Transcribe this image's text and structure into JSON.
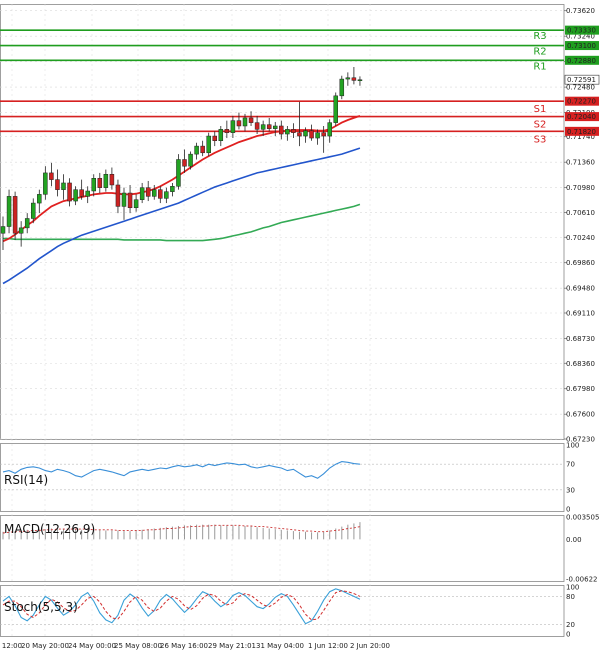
{
  "chart_data": {
    "type": "candlestick",
    "colors": {
      "up_candle": "#22a322",
      "down_candle": "#cc2222",
      "resistance": "#1f9e1f",
      "support": "#d62020",
      "ma_red": "#e02020",
      "ma_blue": "#2255cc",
      "ma_green": "#33aa55",
      "rsi_line": "#3a8fd8",
      "macd_hist": "#cc3333",
      "macd_signal": "#cc3333",
      "stoch_main": "#3aa0d8",
      "stoch_signal": "#d23030",
      "grid": "#d9d9d9",
      "current_price_box": "#ffffff"
    },
    "price_axis": {
      "min": 0.6723,
      "max": 0.7372,
      "ticks": [
        "0.73620",
        "0.73240",
        "0.72860",
        "0.72480",
        "0.72100",
        "0.71740",
        "0.71360",
        "0.70980",
        "0.70610",
        "0.70240",
        "0.69860",
        "0.69480",
        "0.69110",
        "0.68730",
        "0.68360",
        "0.67980",
        "0.67600",
        "0.67230"
      ]
    },
    "time_axis": [
      "12:00",
      "20 May 20:00",
      "24 May 00:00",
      "25 May 08:00",
      "26 May 16:00",
      "29 May 21:01",
      "31 May 04:00",
      "1 Jun 12:00",
      "2 Jun 20:00"
    ],
    "levels": [
      {
        "name": "R3",
        "value": 0.7333,
        "label": "0.73330",
        "kind": "resistance"
      },
      {
        "name": "R2",
        "value": 0.731,
        "label": "0.73100",
        "kind": "resistance"
      },
      {
        "name": "R1",
        "value": 0.7288,
        "label": "0.72880",
        "kind": "resistance"
      },
      {
        "name": "S1",
        "value": 0.7227,
        "label": "0.72270",
        "kind": "support"
      },
      {
        "name": "S2",
        "value": 0.7204,
        "label": "0.72040",
        "kind": "support"
      },
      {
        "name": "S3",
        "value": 0.7182,
        "label": "0.71820",
        "kind": "support"
      }
    ],
    "current_price": {
      "value": 0.72591,
      "label": "0.72591"
    },
    "candles": [
      [
        0.703,
        0.7055,
        0.7005,
        0.704
      ],
      [
        0.704,
        0.7095,
        0.703,
        0.7085
      ],
      [
        0.7085,
        0.7092,
        0.702,
        0.703
      ],
      [
        0.703,
        0.7048,
        0.701,
        0.7038
      ],
      [
        0.7038,
        0.706,
        0.703,
        0.7052
      ],
      [
        0.7052,
        0.7082,
        0.7045,
        0.7075
      ],
      [
        0.7075,
        0.7095,
        0.706,
        0.7088
      ],
      [
        0.7088,
        0.713,
        0.708,
        0.712
      ],
      [
        0.712,
        0.7135,
        0.71,
        0.711
      ],
      [
        0.711,
        0.7125,
        0.7085,
        0.7095
      ],
      [
        0.7095,
        0.7118,
        0.708,
        0.7105
      ],
      [
        0.7105,
        0.7112,
        0.707,
        0.7078
      ],
      [
        0.7078,
        0.71,
        0.7072,
        0.7095
      ],
      [
        0.7095,
        0.711,
        0.708,
        0.7085
      ],
      [
        0.7085,
        0.71,
        0.7075,
        0.7093
      ],
      [
        0.7093,
        0.7118,
        0.7085,
        0.7112
      ],
      [
        0.7112,
        0.712,
        0.709,
        0.7098
      ],
      [
        0.7098,
        0.7125,
        0.7092,
        0.7118
      ],
      [
        0.7118,
        0.7128,
        0.7095,
        0.7102
      ],
      [
        0.7102,
        0.711,
        0.706,
        0.707
      ],
      [
        0.707,
        0.7098,
        0.705,
        0.709
      ],
      [
        0.709,
        0.7102,
        0.706,
        0.7068
      ],
      [
        0.7068,
        0.7088,
        0.7062,
        0.708
      ],
      [
        0.708,
        0.7105,
        0.7075,
        0.7098
      ],
      [
        0.7098,
        0.7108,
        0.7078,
        0.7085
      ],
      [
        0.7085,
        0.7102,
        0.708,
        0.7095
      ],
      [
        0.7095,
        0.71,
        0.7075,
        0.7082
      ],
      [
        0.7082,
        0.7098,
        0.7075,
        0.7092
      ],
      [
        0.7092,
        0.7105,
        0.7085,
        0.71
      ],
      [
        0.71,
        0.7148,
        0.7095,
        0.714
      ],
      [
        0.714,
        0.7155,
        0.712,
        0.713
      ],
      [
        0.713,
        0.7152,
        0.7125,
        0.7148
      ],
      [
        0.7148,
        0.7165,
        0.714,
        0.716
      ],
      [
        0.716,
        0.7168,
        0.7145,
        0.715
      ],
      [
        0.715,
        0.718,
        0.7145,
        0.7175
      ],
      [
        0.7175,
        0.7182,
        0.716,
        0.7168
      ],
      [
        0.7168,
        0.719,
        0.716,
        0.7185
      ],
      [
        0.7185,
        0.7198,
        0.7172,
        0.718
      ],
      [
        0.718,
        0.7205,
        0.7172,
        0.7198
      ],
      [
        0.7198,
        0.721,
        0.7185,
        0.719
      ],
      [
        0.719,
        0.7208,
        0.7182,
        0.7202
      ],
      [
        0.7202,
        0.7212,
        0.719,
        0.7195
      ],
      [
        0.7195,
        0.7205,
        0.7178,
        0.7185
      ],
      [
        0.7185,
        0.7198,
        0.7175,
        0.7192
      ],
      [
        0.7192,
        0.7202,
        0.7182,
        0.7186
      ],
      [
        0.7186,
        0.7196,
        0.7175,
        0.719
      ],
      [
        0.719,
        0.7198,
        0.717,
        0.7178
      ],
      [
        0.7178,
        0.719,
        0.7168,
        0.7185
      ],
      [
        0.7185,
        0.7194,
        0.7172,
        0.718
      ],
      [
        0.718,
        0.7226,
        0.716,
        0.7175
      ],
      [
        0.7175,
        0.7188,
        0.7165,
        0.7183
      ],
      [
        0.7183,
        0.7192,
        0.7168,
        0.7172
      ],
      [
        0.7172,
        0.7185,
        0.7162,
        0.718
      ],
      [
        0.718,
        0.719,
        0.715,
        0.7175
      ],
      [
        0.7175,
        0.72,
        0.7165,
        0.7195
      ],
      [
        0.7195,
        0.724,
        0.719,
        0.7235
      ],
      [
        0.7235,
        0.7265,
        0.723,
        0.726
      ],
      [
        0.726,
        0.727,
        0.725,
        0.7262
      ],
      [
        0.7262,
        0.7278,
        0.7252,
        0.7258
      ],
      [
        0.7258,
        0.7264,
        0.725,
        0.7259
      ]
    ],
    "ma_red": [
      0.7018,
      0.7022,
      0.7028,
      0.7035,
      0.7042,
      0.7048,
      0.7056,
      0.7063,
      0.707,
      0.7074,
      0.7078,
      0.708,
      0.7082,
      0.7084,
      0.7086,
      0.7088,
      0.7089,
      0.709,
      0.709,
      0.7089,
      0.7088,
      0.7088,
      0.7089,
      0.7091,
      0.7093,
      0.7096,
      0.71,
      0.7105,
      0.711,
      0.7116,
      0.7122,
      0.7128,
      0.7134,
      0.714,
      0.7145,
      0.715,
      0.7154,
      0.7158,
      0.7162,
      0.7166,
      0.7169,
      0.7172,
      0.7175,
      0.7177,
      0.7179,
      0.7181,
      0.7182,
      0.7183,
      0.7184,
      0.7184,
      0.7184,
      0.7184,
      0.7183,
      0.7183,
      0.7185,
      0.719,
      0.7195,
      0.7199,
      0.7202,
      0.7205
    ],
    "ma_blue": [
      0.6955,
      0.696,
      0.6966,
      0.6972,
      0.6978,
      0.6985,
      0.6992,
      0.6998,
      0.7004,
      0.701,
      0.7015,
      0.7019,
      0.7023,
      0.7027,
      0.703,
      0.7033,
      0.7036,
      0.7039,
      0.7042,
      0.7045,
      0.7048,
      0.7051,
      0.7054,
      0.7057,
      0.706,
      0.7063,
      0.7066,
      0.7069,
      0.7072,
      0.7075,
      0.7079,
      0.7083,
      0.7087,
      0.7091,
      0.7095,
      0.7099,
      0.7102,
      0.7105,
      0.7108,
      0.7111,
      0.7114,
      0.7117,
      0.712,
      0.7122,
      0.7124,
      0.7126,
      0.7128,
      0.713,
      0.7132,
      0.7134,
      0.7136,
      0.7138,
      0.714,
      0.7142,
      0.7144,
      0.7146,
      0.7148,
      0.7151,
      0.7154,
      0.7157
    ],
    "ma_green": [
      0.7022,
      0.7022,
      0.7021,
      0.7021,
      0.7021,
      0.7021,
      0.7021,
      0.7021,
      0.7021,
      0.7021,
      0.7021,
      0.7021,
      0.7021,
      0.7021,
      0.7021,
      0.7021,
      0.7021,
      0.7021,
      0.7021,
      0.7021,
      0.702,
      0.702,
      0.702,
      0.702,
      0.702,
      0.702,
      0.702,
      0.7019,
      0.7019,
      0.7019,
      0.7019,
      0.7019,
      0.7019,
      0.7019,
      0.702,
      0.7021,
      0.7022,
      0.7024,
      0.7026,
      0.7028,
      0.703,
      0.7032,
      0.7035,
      0.7038,
      0.704,
      0.7043,
      0.7046,
      0.7048,
      0.705,
      0.7052,
      0.7054,
      0.7056,
      0.7058,
      0.706,
      0.7062,
      0.7064,
      0.7066,
      0.7068,
      0.707,
      0.7073
    ],
    "rsi": {
      "label": "RSI(14)",
      "ticks": [
        "100",
        "70",
        "30",
        "0"
      ],
      "tick_values": [
        100,
        70,
        30,
        0
      ],
      "values": [
        58,
        60,
        56,
        62,
        65,
        66,
        64,
        60,
        58,
        62,
        60,
        57,
        52,
        50,
        55,
        60,
        62,
        60,
        58,
        55,
        52,
        58,
        60,
        62,
        60,
        62,
        64,
        63,
        66,
        68,
        66,
        67,
        69,
        66,
        70,
        68,
        70,
        72,
        71,
        69,
        70,
        66,
        64,
        66,
        68,
        66,
        64,
        60,
        62,
        56,
        50,
        52,
        48,
        55,
        64,
        70,
        74,
        73,
        71,
        70
      ]
    },
    "macd": {
      "label": "MACD(12,26,9)",
      "ticks": [
        "0.003505",
        "0.00",
        "-0.00622"
      ],
      "tick_values": [
        0.003505,
        0,
        -0.00622
      ],
      "hist": [
        0.0012,
        0.0013,
        0.0013,
        0.0014,
        0.0015,
        0.0015,
        0.0016,
        0.0016,
        0.0017,
        0.0017,
        0.0017,
        0.0016,
        0.0016,
        0.0015,
        0.0015,
        0.0015,
        0.0015,
        0.0014,
        0.0014,
        0.0014,
        0.0013,
        0.0013,
        0.0014,
        0.0015,
        0.0016,
        0.0017,
        0.0018,
        0.0019,
        0.002,
        0.0021,
        0.0022,
        0.0022,
        0.0023,
        0.0023,
        0.0023,
        0.0023,
        0.0022,
        0.0022,
        0.0022,
        0.0021,
        0.0021,
        0.002,
        0.0019,
        0.0018,
        0.0017,
        0.0016,
        0.0015,
        0.0014,
        0.0013,
        0.0012,
        0.0012,
        0.0011,
        0.0011,
        0.0012,
        0.0014,
        0.0017,
        0.002,
        0.0023,
        0.0025,
        0.0027
      ],
      "signal": [
        0.001,
        0.0011,
        0.0012,
        0.0012,
        0.0013,
        0.0014,
        0.0014,
        0.0015,
        0.0015,
        0.0016,
        0.0016,
        0.0016,
        0.0016,
        0.0016,
        0.0016,
        0.0015,
        0.0015,
        0.0015,
        0.0015,
        0.0014,
        0.0014,
        0.0014,
        0.0014,
        0.0014,
        0.0015,
        0.0015,
        0.0016,
        0.0017,
        0.0017,
        0.0018,
        0.0019,
        0.002,
        0.002,
        0.0021,
        0.0021,
        0.0022,
        0.0022,
        0.0022,
        0.0022,
        0.0022,
        0.0021,
        0.0021,
        0.002,
        0.002,
        0.0019,
        0.0018,
        0.0017,
        0.0016,
        0.0015,
        0.0014,
        0.0013,
        0.0013,
        0.0012,
        0.0012,
        0.0013,
        0.0014,
        0.0015,
        0.0017,
        0.0018,
        0.002
      ]
    },
    "stoch": {
      "label": "Stoch(5,5,3)",
      "ticks": [
        "100",
        "80",
        "20",
        "0"
      ],
      "tick_values": [
        100,
        80,
        20,
        0
      ],
      "main": [
        70,
        80,
        60,
        35,
        28,
        40,
        62,
        80,
        72,
        55,
        40,
        48,
        62,
        80,
        88,
        70,
        45,
        30,
        24,
        40,
        72,
        85,
        76,
        55,
        38,
        50,
        72,
        84,
        75,
        60,
        46,
        58,
        75,
        90,
        84,
        70,
        58,
        66,
        82,
        88,
        82,
        70,
        58,
        54,
        64,
        78,
        86,
        80,
        62,
        42,
        22,
        28,
        48,
        72,
        90,
        96,
        92,
        86,
        80,
        74
      ],
      "signal": [
        62,
        70,
        70,
        58,
        42,
        35,
        45,
        62,
        74,
        68,
        56,
        48,
        50,
        62,
        76,
        80,
        68,
        48,
        34,
        32,
        48,
        68,
        80,
        72,
        56,
        48,
        55,
        70,
        80,
        74,
        60,
        52,
        60,
        76,
        85,
        82,
        70,
        62,
        66,
        80,
        86,
        82,
        72,
        62,
        58,
        66,
        78,
        84,
        78,
        62,
        42,
        30,
        32,
        50,
        70,
        88,
        92,
        90,
        86,
        80
      ]
    }
  }
}
